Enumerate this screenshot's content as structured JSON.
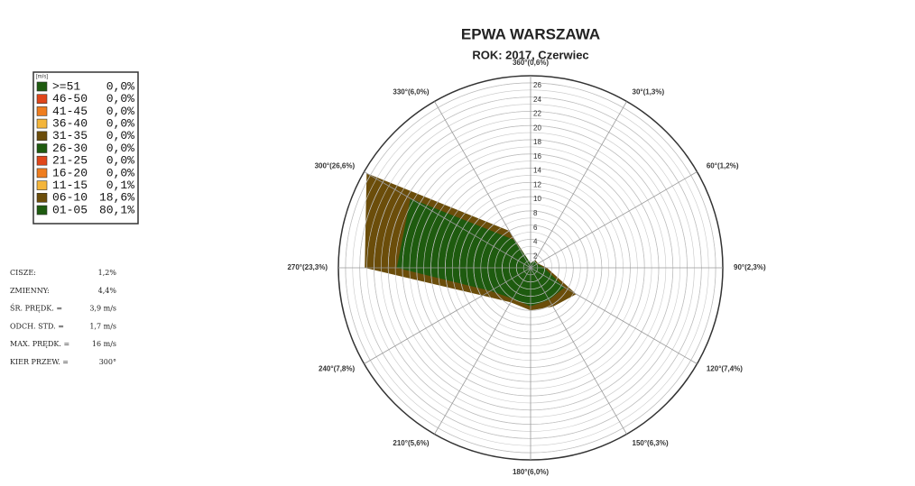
{
  "chart_data": {
    "type": "windrose",
    "title": "EPWA WARSZAWA",
    "subtitle": "ROK: 2017, Czerwiec",
    "categories": [
      "360°(0,6%)",
      "30°(1,3%)",
      "60°(1,2%)",
      "90°(2,3%)",
      "120°(7,4%)",
      "150°(6,3%)",
      "180°(6,0%)",
      "210°(5,6%)",
      "240°(7,8%)",
      "270°(23,3%)",
      "300°(26,6%)",
      "330°(6,0%)"
    ],
    "rlim": [
      0,
      27
    ],
    "rticks": [
      2,
      4,
      6,
      8,
      10,
      12,
      14,
      16,
      18,
      20,
      22,
      24,
      26
    ],
    "rgrid_step": 1,
    "legend_unit": "[m/s]",
    "series": [
      {
        "name": ">=51",
        "total": "0,0%",
        "color": "#1e5b0f"
      },
      {
        "name": "46-50",
        "total": "0,0%",
        "color": "#e0461a"
      },
      {
        "name": "41-45",
        "total": "0,0%",
        "color": "#ef7d1e"
      },
      {
        "name": "36-40",
        "total": "0,0%",
        "color": "#f4b53a"
      },
      {
        "name": "31-35",
        "total": "0,0%",
        "color": "#6b4d0a"
      },
      {
        "name": "26-30",
        "total": "0,0%",
        "color": "#1e5b0f"
      },
      {
        "name": "21-25",
        "total": "0,0%",
        "color": "#e0461a"
      },
      {
        "name": "16-20",
        "total": "0,0%",
        "color": "#ef7d1e"
      },
      {
        "name": "11-15",
        "total": "0,1%",
        "color": "#f4b53a"
      },
      {
        "name": "06-10",
        "total": "18,6%",
        "color": "#6b4d0a",
        "values": [
          0,
          0.1,
          0.1,
          0.4,
          1.9,
          1.1,
          0.6,
          0.6,
          1.3,
          4.5,
          7.1,
          1.5
        ]
      },
      {
        "name": "01-05",
        "total": "80,1%",
        "color": "#1e5b0f",
        "values": [
          0.6,
          1.2,
          1.1,
          1.9,
          5.5,
          5.2,
          5.4,
          5.0,
          6.5,
          18.8,
          19.5,
          4.5
        ]
      }
    ],
    "stats": [
      [
        "CISZE:",
        "1,2%"
      ],
      [
        "ZMIENNY:",
        "4,4%"
      ],
      [
        "ŚR. PRĘDK. =",
        "3,9 m/s"
      ],
      [
        "ODCH. STD. =",
        "1,7 m/s"
      ],
      [
        "MAX. PRĘDK. =",
        "16 m/s"
      ],
      [
        "KIER PRZEW. =",
        "300°"
      ]
    ]
  }
}
